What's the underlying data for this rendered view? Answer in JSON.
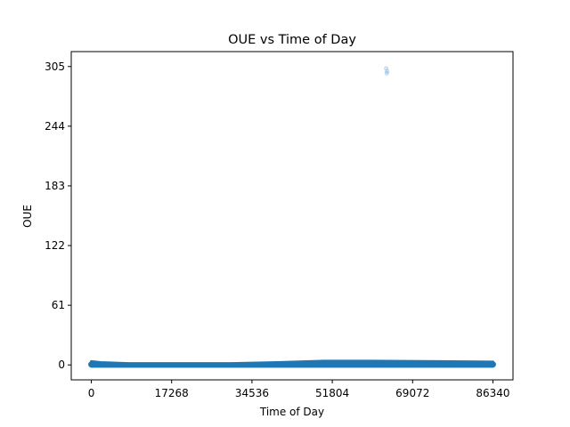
{
  "chart_data": {
    "type": "scatter",
    "title": "OUE vs Time of Day",
    "xlabel": "Time of Day",
    "ylabel": "OUE",
    "xlim": [
      -4317,
      90657
    ],
    "ylim": [
      -15.25,
      320.25
    ],
    "xticks": [
      0,
      17268,
      34536,
      51804,
      69072,
      86340
    ],
    "yticks": [
      0,
      61,
      122,
      183,
      244,
      305
    ],
    "series": [
      {
        "color": "#1f77b4",
        "band": [
          {
            "x": 0,
            "ymin": -1.5,
            "ymax": 3.5
          },
          {
            "x": 2000,
            "ymin": -1.5,
            "ymax": 2.5
          },
          {
            "x": 8000,
            "ymin": -1.5,
            "ymax": 1.5
          },
          {
            "x": 30000,
            "ymin": -1.5,
            "ymax": 1.5
          },
          {
            "x": 40000,
            "ymin": -1.5,
            "ymax": 2.5
          },
          {
            "x": 50000,
            "ymin": -1.5,
            "ymax": 4.0
          },
          {
            "x": 60000,
            "ymin": -1.5,
            "ymax": 4.0
          },
          {
            "x": 75000,
            "ymin": -1.5,
            "ymax": 3.5
          },
          {
            "x": 86340,
            "ymin": -1.5,
            "ymax": 3.0
          }
        ],
        "outliers": [
          {
            "x": 63400,
            "y": 303
          },
          {
            "x": 63600,
            "y": 300
          },
          {
            "x": 63500,
            "y": 298
          }
        ]
      }
    ]
  }
}
